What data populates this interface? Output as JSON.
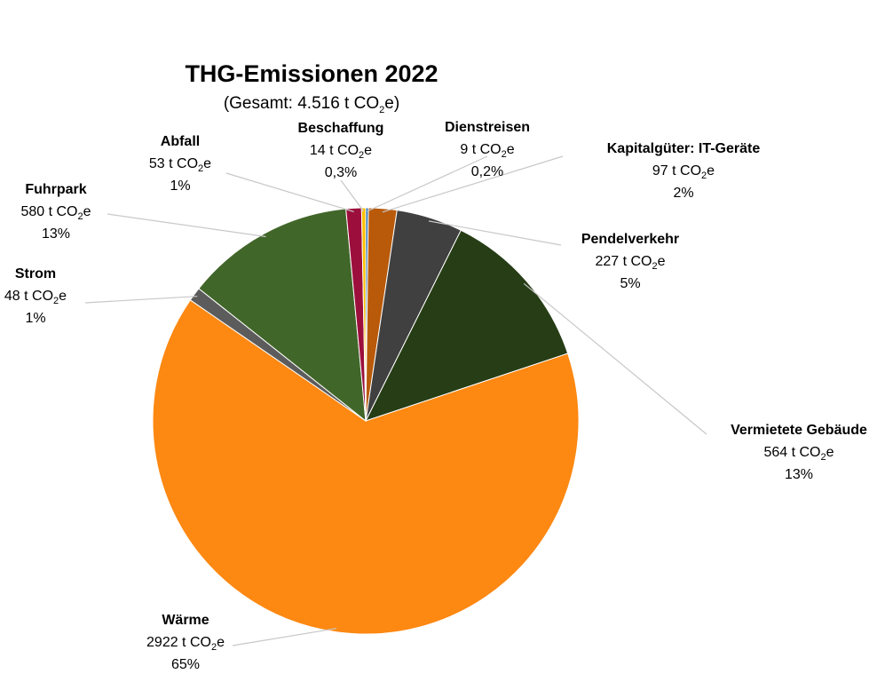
{
  "chart_data": {
    "type": "pie",
    "title": "THG-Emissionen 2022",
    "subtitle": {
      "prefix": "(Gesamt: 4.516 t CO",
      "sub": "2",
      "suffix": "e)"
    },
    "unit": {
      "prefix": "t CO",
      "sub": "2",
      "suffix": "e"
    },
    "start_angle_deg": -90,
    "direction": "clockwise",
    "slices": [
      {
        "name": "Dienstreisen",
        "value": 9,
        "value_text": "9",
        "percent_text": "0,2%",
        "color": "#2e75b6"
      },
      {
        "name": "Kapitalgüter: IT-Geräte",
        "value": 97,
        "value_text": "97",
        "percent_text": "2%",
        "color": "#b85a0a"
      },
      {
        "name": "Pendelverkehr",
        "value": 227,
        "value_text": "227",
        "percent_text": "5%",
        "color": "#404040"
      },
      {
        "name": "Vermietete Gebäude",
        "value": 564,
        "value_text": "564",
        "percent_text": "13%",
        "color": "#263d16"
      },
      {
        "name": "Wärme",
        "value": 2922,
        "value_text": "2922",
        "percent_text": "65%",
        "color": "#fd8812"
      },
      {
        "name": "Strom",
        "value": 48,
        "value_text": "48",
        "percent_text": "1%",
        "color": "#5c5c5c"
      },
      {
        "name": "Fuhrpark",
        "value": 580,
        "value_text": "580",
        "percent_text": "13%",
        "color": "#416629"
      },
      {
        "name": "Abfall",
        "value": 53,
        "value_text": "53",
        "percent_text": "1%",
        "color": "#9c0f3c"
      },
      {
        "name": "Beschaffung",
        "value": 14,
        "value_text": "14",
        "percent_text": "0,3%",
        "color": "#ffc000"
      }
    ]
  }
}
